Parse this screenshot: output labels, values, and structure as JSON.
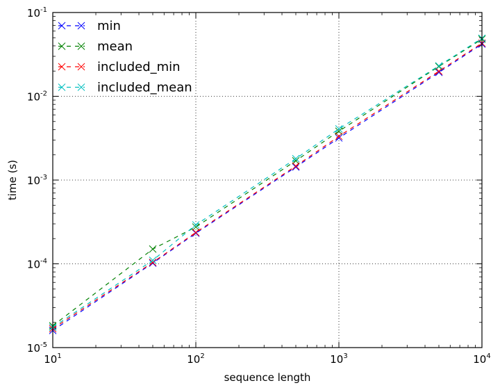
{
  "chart_data": {
    "type": "line",
    "xscale": "log",
    "yscale": "log",
    "xlim": [
      10,
      10000
    ],
    "ylim": [
      1e-05,
      0.1
    ],
    "xlabel": "sequence length",
    "ylabel": "time (s)",
    "xticks": [
      {
        "value": 10,
        "base": "10",
        "exp": "1"
      },
      {
        "value": 100,
        "base": "10",
        "exp": "2"
      },
      {
        "value": 1000,
        "base": "10",
        "exp": "3"
      },
      {
        "value": 10000,
        "base": "10",
        "exp": "4"
      }
    ],
    "yticks": [
      {
        "value": 1e-05,
        "base": "10",
        "exp": "-5"
      },
      {
        "value": 0.0001,
        "base": "10",
        "exp": "-4"
      },
      {
        "value": 0.001,
        "base": "10",
        "exp": "-3"
      },
      {
        "value": 0.01,
        "base": "10",
        "exp": "-2"
      },
      {
        "value": 0.1,
        "base": "10",
        "exp": "-1"
      }
    ],
    "grid": true,
    "legend_position": "top-left",
    "x": [
      10,
      50,
      100,
      500,
      1000,
      5000,
      10000
    ],
    "series": [
      {
        "name": "min",
        "color": "#0000ff",
        "values": [
          1.6e-05,
          0.000102,
          0.000232,
          0.00143,
          0.00318,
          0.0193,
          0.042
        ]
      },
      {
        "name": "mean",
        "color": "#008000",
        "values": [
          1.82e-05,
          0.00015,
          0.000275,
          0.0017,
          0.00383,
          0.0227,
          0.0481
        ]
      },
      {
        "name": "included_min",
        "color": "#ff0000",
        "values": [
          1.68e-05,
          0.000104,
          0.000237,
          0.00147,
          0.00333,
          0.0199,
          0.0431
        ]
      },
      {
        "name": "included_mean",
        "color": "#00bfbf",
        "values": [
          1.75e-05,
          0.00011,
          0.000292,
          0.0018,
          0.00408,
          0.0231,
          0.0493
        ]
      }
    ]
  }
}
